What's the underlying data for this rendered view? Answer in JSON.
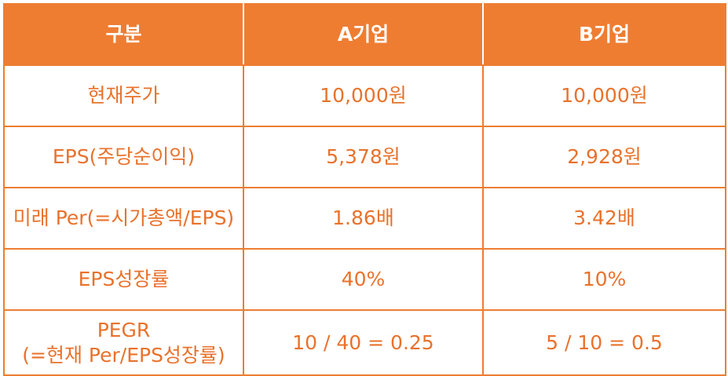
{
  "table": {
    "headers": [
      "구분",
      "A기업",
      "B기업"
    ],
    "rows": [
      {
        "label": [
          "현재주가"
        ],
        "a": "10,000원",
        "b": "10,000원"
      },
      {
        "label": [
          "EPS(주당순이익)"
        ],
        "a": "5,378원",
        "b": "2,928원"
      },
      {
        "label": [
          "미래 Per(=시가총액/EPS)"
        ],
        "a": "1.86배",
        "b": "3.42배"
      },
      {
        "label": [
          "EPS성장률"
        ],
        "a": "40%",
        "b": "10%"
      },
      {
        "label": [
          "PEGR",
          "(=현재 Per/EPS성장률)"
        ],
        "a": "10 / 40 = 0.25",
        "b": "5 / 10 = 0.5"
      }
    ]
  },
  "colors": {
    "accent": "#ee7d32",
    "text": "#e8722c",
    "header_text": "#ffffff"
  }
}
